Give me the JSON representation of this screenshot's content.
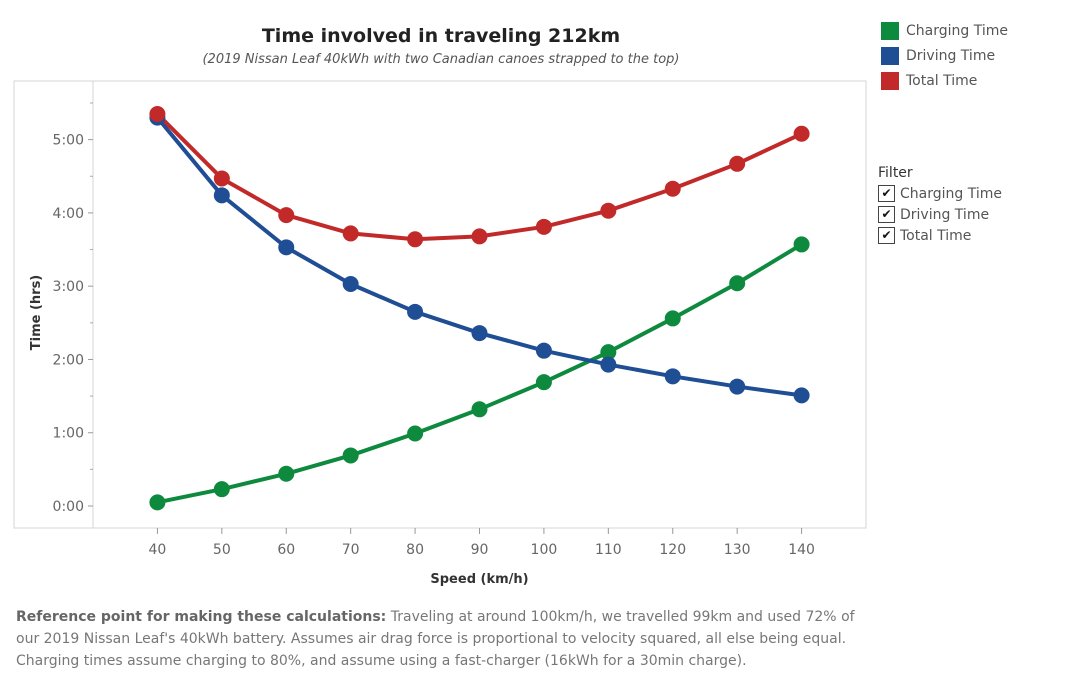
{
  "chart_data": {
    "type": "line",
    "title": "Time involved in traveling 212km",
    "subtitle": "(2019 Nissan Leaf 40kWh with two Canadian canoes strapped to the top)",
    "xlabel": "Speed (km/h)",
    "ylabel": "Time (hrs)",
    "x": [
      40,
      50,
      60,
      70,
      80,
      90,
      100,
      110,
      120,
      130,
      140
    ],
    "x_tick_labels": [
      "40",
      "50",
      "60",
      "70",
      "80",
      "90",
      "100",
      "110",
      "120",
      "130",
      "140"
    ],
    "xlim": [
      30,
      150
    ],
    "ylim": [
      -0.3,
      5.8
    ],
    "y_ticks": [
      0,
      1,
      2,
      3,
      4,
      5
    ],
    "y_tick_labels": [
      "0:00",
      "1:00",
      "2:00",
      "3:00",
      "4:00",
      "5:00"
    ],
    "series": [
      {
        "name": "Charging Time",
        "color": "#0e8a3e",
        "values": [
          0.05,
          0.23,
          0.44,
          0.69,
          0.99,
          1.32,
          1.69,
          2.1,
          2.56,
          3.04,
          3.57
        ]
      },
      {
        "name": "Driving Time",
        "color": "#1f4e94",
        "values": [
          5.3,
          4.24,
          3.53,
          3.03,
          2.65,
          2.36,
          2.12,
          1.93,
          1.77,
          1.63,
          1.51
        ]
      },
      {
        "name": "Total Time",
        "color": "#c22a2a",
        "values": [
          5.35,
          4.47,
          3.97,
          3.72,
          3.64,
          3.68,
          3.81,
          4.03,
          4.33,
          4.67,
          5.08
        ]
      }
    ],
    "grid": false,
    "legend_position": "top-right"
  },
  "legend": {
    "items": [
      {
        "label": "Charging Time",
        "color": "#0e8a3e"
      },
      {
        "label": "Driving Time",
        "color": "#1f4e94"
      },
      {
        "label": "Total Time",
        "color": "#c22a2a"
      }
    ]
  },
  "filter": {
    "title": "Filter",
    "items": [
      {
        "label": "Charging Time",
        "checked": "✔"
      },
      {
        "label": "Driving Time",
        "checked": "✔"
      },
      {
        "label": "Total Time",
        "checked": "✔"
      }
    ]
  },
  "footnote": {
    "bold": "Reference point for making these calculations:",
    "text": " Traveling at around 100km/h, we travelled 99km and used 72% of our 2019 Nissan Leaf's 40kWh battery. Assumes air drag force is proportional to velocity squared, all else being equal. Charging times assume charging to 80%, and assume using a fast-charger (16kWh for a 30min charge)."
  }
}
